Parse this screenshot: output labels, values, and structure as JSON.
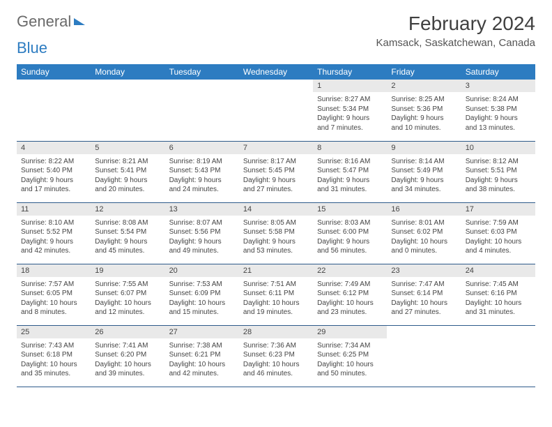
{
  "logo": {
    "word1": "General",
    "word2": "Blue"
  },
  "title": "February 2024",
  "location": "Kamsack, Saskatchewan, Canada",
  "colors": {
    "header_bg": "#2d7cc1",
    "header_text": "#ffffff",
    "daynum_bg": "#e9e9e9",
    "text": "#444444",
    "rule": "#2d5a8a"
  },
  "fonts": {
    "title_size_pt": 21,
    "location_size_pt": 11,
    "dayheader_size_pt": 9,
    "daynum_size_pt": 8,
    "body_size_pt": 7.5
  },
  "day_headers": [
    "Sunday",
    "Monday",
    "Tuesday",
    "Wednesday",
    "Thursday",
    "Friday",
    "Saturday"
  ],
  "weeks": [
    [
      null,
      null,
      null,
      null,
      {
        "n": "1",
        "sunrise": "8:27 AM",
        "sunset": "5:34 PM",
        "daylight": "9 hours and 7 minutes."
      },
      {
        "n": "2",
        "sunrise": "8:25 AM",
        "sunset": "5:36 PM",
        "daylight": "9 hours and 10 minutes."
      },
      {
        "n": "3",
        "sunrise": "8:24 AM",
        "sunset": "5:38 PM",
        "daylight": "9 hours and 13 minutes."
      }
    ],
    [
      {
        "n": "4",
        "sunrise": "8:22 AM",
        "sunset": "5:40 PM",
        "daylight": "9 hours and 17 minutes."
      },
      {
        "n": "5",
        "sunrise": "8:21 AM",
        "sunset": "5:41 PM",
        "daylight": "9 hours and 20 minutes."
      },
      {
        "n": "6",
        "sunrise": "8:19 AM",
        "sunset": "5:43 PM",
        "daylight": "9 hours and 24 minutes."
      },
      {
        "n": "7",
        "sunrise": "8:17 AM",
        "sunset": "5:45 PM",
        "daylight": "9 hours and 27 minutes."
      },
      {
        "n": "8",
        "sunrise": "8:16 AM",
        "sunset": "5:47 PM",
        "daylight": "9 hours and 31 minutes."
      },
      {
        "n": "9",
        "sunrise": "8:14 AM",
        "sunset": "5:49 PM",
        "daylight": "9 hours and 34 minutes."
      },
      {
        "n": "10",
        "sunrise": "8:12 AM",
        "sunset": "5:51 PM",
        "daylight": "9 hours and 38 minutes."
      }
    ],
    [
      {
        "n": "11",
        "sunrise": "8:10 AM",
        "sunset": "5:52 PM",
        "daylight": "9 hours and 42 minutes."
      },
      {
        "n": "12",
        "sunrise": "8:08 AM",
        "sunset": "5:54 PM",
        "daylight": "9 hours and 45 minutes."
      },
      {
        "n": "13",
        "sunrise": "8:07 AM",
        "sunset": "5:56 PM",
        "daylight": "9 hours and 49 minutes."
      },
      {
        "n": "14",
        "sunrise": "8:05 AM",
        "sunset": "5:58 PM",
        "daylight": "9 hours and 53 minutes."
      },
      {
        "n": "15",
        "sunrise": "8:03 AM",
        "sunset": "6:00 PM",
        "daylight": "9 hours and 56 minutes."
      },
      {
        "n": "16",
        "sunrise": "8:01 AM",
        "sunset": "6:02 PM",
        "daylight": "10 hours and 0 minutes."
      },
      {
        "n": "17",
        "sunrise": "7:59 AM",
        "sunset": "6:03 PM",
        "daylight": "10 hours and 4 minutes."
      }
    ],
    [
      {
        "n": "18",
        "sunrise": "7:57 AM",
        "sunset": "6:05 PM",
        "daylight": "10 hours and 8 minutes."
      },
      {
        "n": "19",
        "sunrise": "7:55 AM",
        "sunset": "6:07 PM",
        "daylight": "10 hours and 12 minutes."
      },
      {
        "n": "20",
        "sunrise": "7:53 AM",
        "sunset": "6:09 PM",
        "daylight": "10 hours and 15 minutes."
      },
      {
        "n": "21",
        "sunrise": "7:51 AM",
        "sunset": "6:11 PM",
        "daylight": "10 hours and 19 minutes."
      },
      {
        "n": "22",
        "sunrise": "7:49 AM",
        "sunset": "6:12 PM",
        "daylight": "10 hours and 23 minutes."
      },
      {
        "n": "23",
        "sunrise": "7:47 AM",
        "sunset": "6:14 PM",
        "daylight": "10 hours and 27 minutes."
      },
      {
        "n": "24",
        "sunrise": "7:45 AM",
        "sunset": "6:16 PM",
        "daylight": "10 hours and 31 minutes."
      }
    ],
    [
      {
        "n": "25",
        "sunrise": "7:43 AM",
        "sunset": "6:18 PM",
        "daylight": "10 hours and 35 minutes."
      },
      {
        "n": "26",
        "sunrise": "7:41 AM",
        "sunset": "6:20 PM",
        "daylight": "10 hours and 39 minutes."
      },
      {
        "n": "27",
        "sunrise": "7:38 AM",
        "sunset": "6:21 PM",
        "daylight": "10 hours and 42 minutes."
      },
      {
        "n": "28",
        "sunrise": "7:36 AM",
        "sunset": "6:23 PM",
        "daylight": "10 hours and 46 minutes."
      },
      {
        "n": "29",
        "sunrise": "7:34 AM",
        "sunset": "6:25 PM",
        "daylight": "10 hours and 50 minutes."
      },
      null,
      null
    ]
  ],
  "labels": {
    "sunrise": "Sunrise:",
    "sunset": "Sunset:",
    "daylight": "Daylight:"
  }
}
